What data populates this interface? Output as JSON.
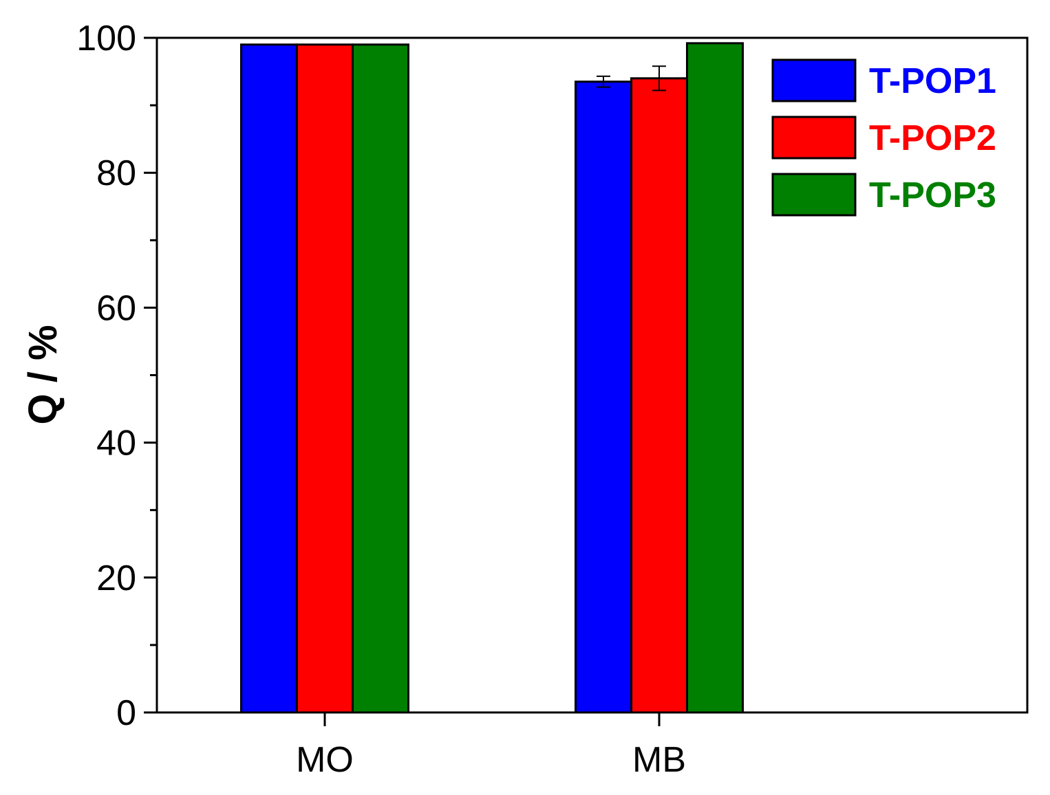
{
  "chart_data": {
    "type": "bar",
    "title": "",
    "xlabel": "",
    "ylabel": "Q / %",
    "ylim": [
      0,
      100
    ],
    "yticks": [
      0,
      20,
      40,
      60,
      80,
      100
    ],
    "categories": [
      "MO",
      "MB"
    ],
    "series": [
      {
        "name": "T-POP1",
        "color": "#0000ff",
        "values": [
          99,
          93.5
        ],
        "errors": [
          0,
          0.8
        ]
      },
      {
        "name": "T-POP2",
        "color": "#ff0000",
        "values": [
          99,
          94
        ],
        "errors": [
          0,
          1.8
        ]
      },
      {
        "name": "T-POP3",
        "color": "#008000",
        "values": [
          99,
          99.2
        ],
        "errors": [
          0,
          0
        ]
      }
    ],
    "legend": {
      "placement": "top-right"
    },
    "grid": false
  }
}
